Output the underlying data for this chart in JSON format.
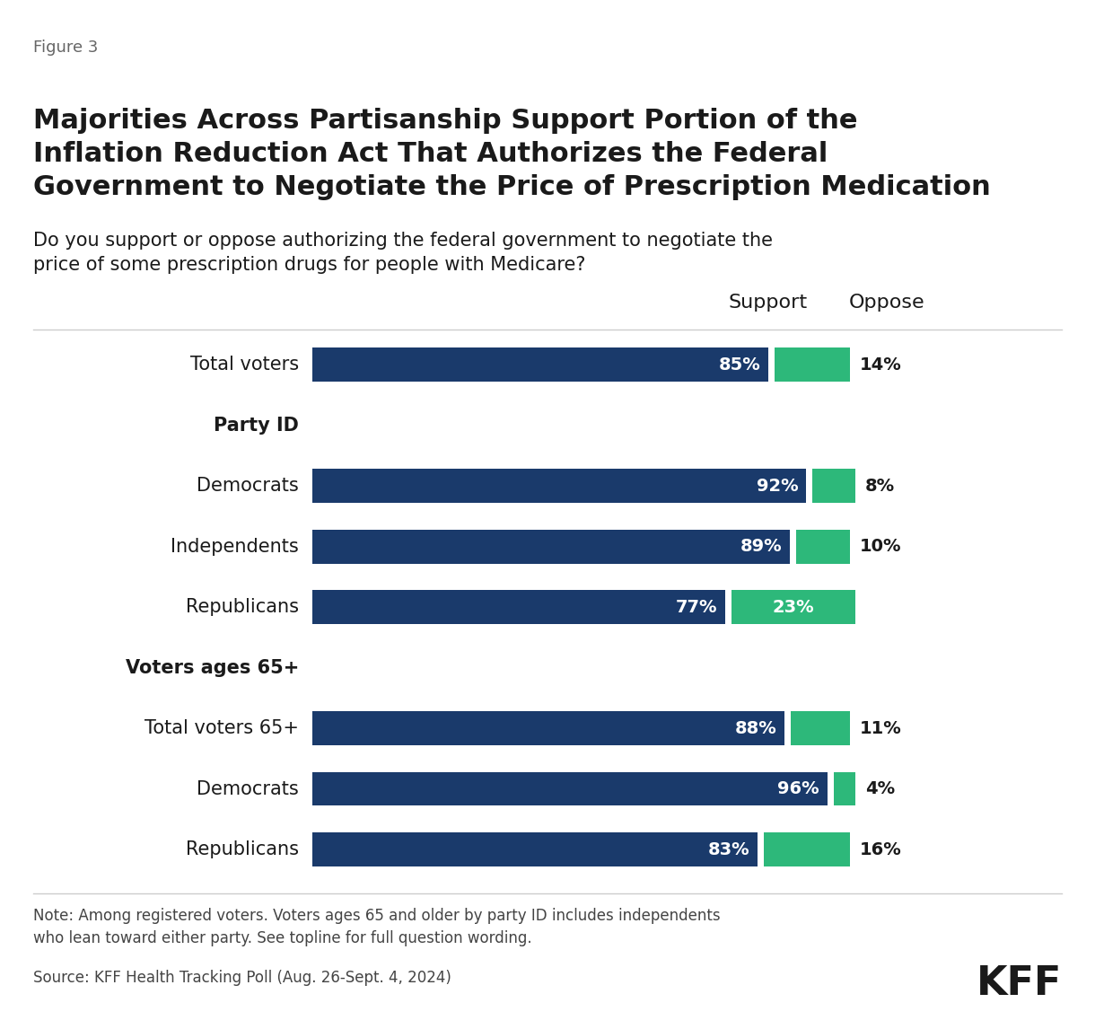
{
  "figure_label": "Figure 3",
  "title": "Majorities Across Partisanship Support Portion of the\nInflation Reduction Act That Authorizes the Federal\nGovernment to Negotiate the Price of Prescription Medication",
  "subtitle": "Do you support or oppose authorizing the federal government to negotiate the\nprice of some prescription drugs for people with Medicare?",
  "display_labels": [
    "Total voters",
    "",
    "Democrats",
    "Independents",
    "Republicans",
    "",
    "Total voters 65+",
    "Democrats",
    "Republicans"
  ],
  "header_rows": [
    1,
    5
  ],
  "header_labels": [
    "Party ID",
    "Voters ages 65+"
  ],
  "support_values": [
    85,
    null,
    92,
    89,
    77,
    null,
    88,
    96,
    83
  ],
  "oppose_values": [
    14,
    null,
    8,
    10,
    23,
    null,
    11,
    4,
    16
  ],
  "support_color": "#1a3a6b",
  "oppose_color": "#2db87a",
  "support_label": "Support",
  "oppose_label": "Oppose",
  "note": "Note: Among registered voters. Voters ages 65 and older by party ID includes independents\nwho lean toward either party. See topline for full question wording.",
  "source": "Source: KFF Health Tracking Poll (Aug. 26-Sept. 4, 2024)",
  "kff_label": "KFF",
  "background_color": "#ffffff",
  "text_color": "#1a1a1a",
  "note_color": "#444444",
  "support_text_color": "#ffffff",
  "figure_label_color": "#666666"
}
